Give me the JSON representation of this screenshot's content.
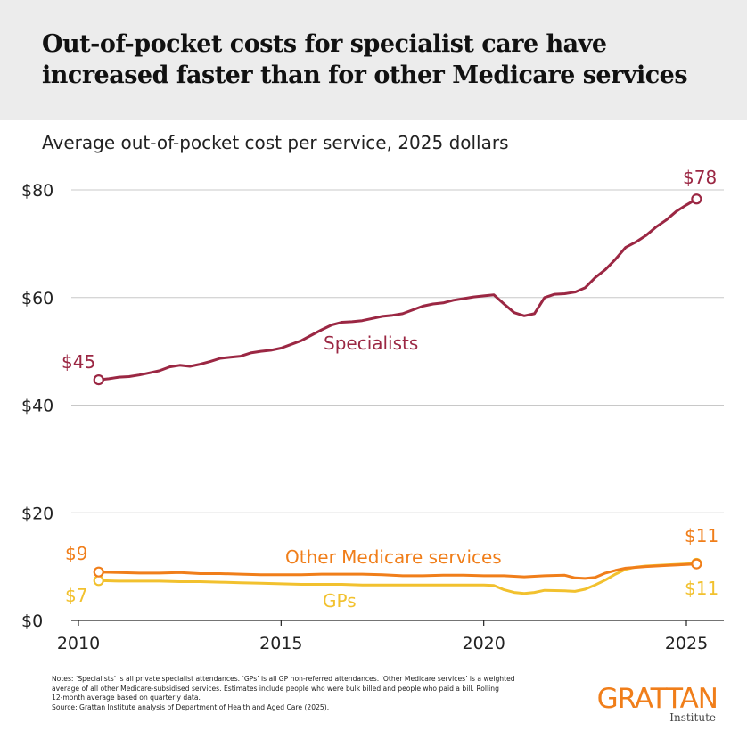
{
  "header": {
    "title": "Out-of-pocket costs for specialist care have increased faster than for other Medicare services"
  },
  "chart_data": {
    "type": "line",
    "subtitle": "Average out-of-pocket cost per service, 2025 dollars",
    "xlabel": "",
    "ylabel": "",
    "xlim": [
      2010,
      2025.5
    ],
    "ylim": [
      0,
      80
    ],
    "x_ticks": [
      "2010",
      "2015",
      "2020",
      "2025"
    ],
    "y_ticks": [
      "$0",
      "$20",
      "$40",
      "$60",
      "$80"
    ],
    "grid": "horizontal",
    "series": [
      {
        "name": "Specialists",
        "color": "#9b2743",
        "start_label": "$45",
        "end_label": "$78",
        "points": [
          [
            2010.5,
            44.7
          ],
          [
            2010.75,
            44.9
          ],
          [
            2011.0,
            45.2
          ],
          [
            2011.25,
            45.3
          ],
          [
            2011.5,
            45.6
          ],
          [
            2011.75,
            46.0
          ],
          [
            2012.0,
            46.4
          ],
          [
            2012.25,
            47.1
          ],
          [
            2012.5,
            47.4
          ],
          [
            2012.75,
            47.2
          ],
          [
            2013.0,
            47.6
          ],
          [
            2013.25,
            48.1
          ],
          [
            2013.5,
            48.7
          ],
          [
            2013.75,
            48.9
          ],
          [
            2014.0,
            49.1
          ],
          [
            2014.25,
            49.7
          ],
          [
            2014.5,
            50.0
          ],
          [
            2014.75,
            50.2
          ],
          [
            2015.0,
            50.6
          ],
          [
            2015.25,
            51.3
          ],
          [
            2015.5,
            52.0
          ],
          [
            2015.75,
            53.0
          ],
          [
            2016.0,
            54.0
          ],
          [
            2016.25,
            54.9
          ],
          [
            2016.5,
            55.4
          ],
          [
            2016.75,
            55.5
          ],
          [
            2017.0,
            55.7
          ],
          [
            2017.25,
            56.1
          ],
          [
            2017.5,
            56.5
          ],
          [
            2017.75,
            56.7
          ],
          [
            2018.0,
            57.0
          ],
          [
            2018.25,
            57.7
          ],
          [
            2018.5,
            58.4
          ],
          [
            2018.75,
            58.8
          ],
          [
            2019.0,
            59.0
          ],
          [
            2019.25,
            59.5
          ],
          [
            2019.5,
            59.8
          ],
          [
            2019.75,
            60.1
          ],
          [
            2020.0,
            60.3
          ],
          [
            2020.25,
            60.5
          ],
          [
            2020.5,
            58.8
          ],
          [
            2020.75,
            57.2
          ],
          [
            2021.0,
            56.6
          ],
          [
            2021.25,
            57.0
          ],
          [
            2021.5,
            60.0
          ],
          [
            2021.75,
            60.6
          ],
          [
            2022.0,
            60.7
          ],
          [
            2022.25,
            61.0
          ],
          [
            2022.5,
            61.8
          ],
          [
            2022.75,
            63.7
          ],
          [
            2023.0,
            65.2
          ],
          [
            2023.25,
            67.1
          ],
          [
            2023.5,
            69.3
          ],
          [
            2023.75,
            70.3
          ],
          [
            2024.0,
            71.5
          ],
          [
            2024.25,
            73.1
          ],
          [
            2024.5,
            74.4
          ],
          [
            2024.75,
            76.0
          ],
          [
            2025.0,
            77.2
          ],
          [
            2025.25,
            78.3
          ]
        ]
      },
      {
        "name": "Other Medicare services",
        "color": "#f07e1a",
        "start_label": "$9",
        "end_label": "$11",
        "points": [
          [
            2010.5,
            9.0
          ],
          [
            2011.0,
            8.9
          ],
          [
            2011.5,
            8.8
          ],
          [
            2012.0,
            8.8
          ],
          [
            2012.5,
            8.9
          ],
          [
            2013.0,
            8.7
          ],
          [
            2013.5,
            8.7
          ],
          [
            2014.0,
            8.6
          ],
          [
            2014.5,
            8.5
          ],
          [
            2015.0,
            8.5
          ],
          [
            2015.5,
            8.5
          ],
          [
            2016.0,
            8.6
          ],
          [
            2016.5,
            8.6
          ],
          [
            2017.0,
            8.6
          ],
          [
            2017.5,
            8.5
          ],
          [
            2018.0,
            8.3
          ],
          [
            2018.5,
            8.3
          ],
          [
            2019.0,
            8.4
          ],
          [
            2019.5,
            8.4
          ],
          [
            2020.0,
            8.3
          ],
          [
            2020.5,
            8.3
          ],
          [
            2021.0,
            8.1
          ],
          [
            2021.5,
            8.3
          ],
          [
            2022.0,
            8.4
          ],
          [
            2022.25,
            7.9
          ],
          [
            2022.5,
            7.8
          ],
          [
            2022.75,
            8.0
          ],
          [
            2023.0,
            8.8
          ],
          [
            2023.25,
            9.3
          ],
          [
            2023.5,
            9.7
          ],
          [
            2024.0,
            10.0
          ],
          [
            2024.5,
            10.2
          ],
          [
            2025.0,
            10.4
          ],
          [
            2025.25,
            10.5
          ]
        ]
      },
      {
        "name": "GPs",
        "color": "#f2c12e",
        "start_label": "$7",
        "end_label": "$11",
        "points": [
          [
            2010.5,
            7.4
          ],
          [
            2011.0,
            7.3
          ],
          [
            2011.5,
            7.3
          ],
          [
            2012.0,
            7.3
          ],
          [
            2012.5,
            7.2
          ],
          [
            2013.0,
            7.2
          ],
          [
            2013.5,
            7.1
          ],
          [
            2014.0,
            7.0
          ],
          [
            2014.5,
            6.9
          ],
          [
            2015.0,
            6.8
          ],
          [
            2015.5,
            6.7
          ],
          [
            2016.0,
            6.7
          ],
          [
            2016.5,
            6.7
          ],
          [
            2017.0,
            6.6
          ],
          [
            2017.5,
            6.6
          ],
          [
            2018.0,
            6.6
          ],
          [
            2018.5,
            6.6
          ],
          [
            2019.0,
            6.6
          ],
          [
            2019.5,
            6.6
          ],
          [
            2020.0,
            6.6
          ],
          [
            2020.25,
            6.5
          ],
          [
            2020.5,
            5.7
          ],
          [
            2020.75,
            5.2
          ],
          [
            2021.0,
            5.0
          ],
          [
            2021.25,
            5.2
          ],
          [
            2021.5,
            5.6
          ],
          [
            2022.0,
            5.5
          ],
          [
            2022.25,
            5.4
          ],
          [
            2022.5,
            5.8
          ],
          [
            2022.75,
            6.6
          ],
          [
            2023.0,
            7.5
          ],
          [
            2023.25,
            8.6
          ],
          [
            2023.5,
            9.5
          ],
          [
            2023.75,
            9.9
          ],
          [
            2024.0,
            10.1
          ],
          [
            2024.5,
            10.3
          ],
          [
            2025.0,
            10.5
          ],
          [
            2025.25,
            10.6
          ]
        ]
      }
    ]
  },
  "notes": {
    "line1": "Notes: ‘Specialists’ is all private specialist attendances. ‘GPs’ is all GP non-referred attendances. ‘Other Medicare services’ is a weighted",
    "line2": "average of all other Medicare-subsidised services. Estimates include people who were bulk billed and people who paid a bill. Rolling",
    "line3": "12-month average based on quarterly data.",
    "line4": "Source: Grattan Institute analysis of Department of Health and Aged Care (2025)."
  },
  "logo": {
    "name": "GRATTAN",
    "sub": "Institute",
    "color": "#f07e1a"
  }
}
